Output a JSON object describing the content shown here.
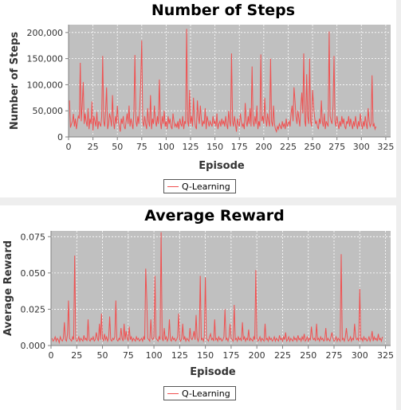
{
  "colors": {
    "plot_bg": "#c0c0c0",
    "grid": "#ffffff",
    "series": "#f05050",
    "axis": "#7f7f7f"
  },
  "chart_data": [
    {
      "type": "line",
      "title": "Number of Steps",
      "xlabel": "Episode",
      "ylabel": "Number of Steps",
      "xlim": [
        0,
        330
      ],
      "ylim": [
        0,
        215000
      ],
      "xticks": [
        0,
        25,
        50,
        75,
        100,
        125,
        150,
        175,
        200,
        225,
        250,
        275,
        300,
        325
      ],
      "xtick_labels": [
        "0",
        "25",
        "50",
        "75",
        "100",
        "125",
        "150",
        "175",
        "200",
        "225",
        "250",
        "275",
        "300",
        "325"
      ],
      "yticks": [
        0,
        50000,
        100000,
        150000,
        200000
      ],
      "ytick_labels": [
        "0",
        "50,000",
        "100,000",
        "150,000",
        "200,000"
      ],
      "grid": true,
      "legend": "bottom-center",
      "series": [
        {
          "name": "Q-Learning",
          "x_start": 1,
          "values": [
            70000,
            18000,
            25000,
            30000,
            44000,
            20000,
            35000,
            15000,
            28000,
            40000,
            35000,
            142000,
            30000,
            60000,
            105000,
            25000,
            45000,
            30000,
            20000,
            55000,
            15000,
            35000,
            25000,
            68000,
            12000,
            40000,
            30000,
            20000,
            48000,
            15000,
            30000,
            25000,
            20000,
            40000,
            155000,
            30000,
            20000,
            50000,
            95000,
            15000,
            25000,
            45000,
            35000,
            20000,
            80000,
            30000,
            15000,
            40000,
            25000,
            60000,
            30000,
            20000,
            10000,
            35000,
            25000,
            40000,
            20000,
            15000,
            30000,
            45000,
            25000,
            60000,
            20000,
            35000,
            25000,
            15000,
            50000,
            157000,
            30000,
            20000,
            40000,
            25000,
            60000,
            110000,
            185000,
            30000,
            20000,
            40000,
            25000,
            15000,
            55000,
            30000,
            20000,
            80000,
            15000,
            35000,
            25000,
            60000,
            30000,
            20000,
            40000,
            25000,
            110000,
            30000,
            15000,
            40000,
            25000,
            50000,
            20000,
            30000,
            15000,
            40000,
            25000,
            35000,
            20000,
            15000,
            45000,
            30000,
            20000,
            25000,
            18000,
            30000,
            15000,
            35000,
            25000,
            20000,
            40000,
            15000,
            30000,
            25000,
            207000,
            30000,
            20000,
            90000,
            25000,
            40000,
            20000,
            75000,
            35000,
            20000,
            15000,
            70000,
            40000,
            25000,
            60000,
            35000,
            20000,
            30000,
            25000,
            55000,
            15000,
            40000,
            30000,
            20000,
            30000,
            25000,
            20000,
            40000,
            25000,
            30000,
            20000,
            45000,
            15000,
            25000,
            30000,
            20000,
            35000,
            25000,
            30000,
            20000,
            40000,
            25000,
            15000,
            50000,
            30000,
            20000,
            160000,
            30000,
            20000,
            40000,
            25000,
            10000,
            35000,
            25000,
            20000,
            45000,
            30000,
            20000,
            25000,
            15000,
            65000,
            30000,
            20000,
            40000,
            25000,
            55000,
            20000,
            135000,
            30000,
            20000,
            40000,
            25000,
            60000,
            15000,
            30000,
            20000,
            158000,
            30000,
            40000,
            25000,
            75000,
            35000,
            20000,
            45000,
            30000,
            20000,
            150000,
            30000,
            20000,
            60000,
            25000,
            15000,
            10000,
            20000,
            15000,
            25000,
            20000,
            15000,
            30000,
            20000,
            25000,
            15000,
            35000,
            20000,
            25000,
            30000,
            20000,
            45000,
            60000,
            30000,
            95000,
            70000,
            40000,
            25000,
            50000,
            35000,
            20000,
            60000,
            85000,
            45000,
            160000,
            30000,
            20000,
            120000,
            40000,
            25000,
            150000,
            30000,
            20000,
            90000,
            60000,
            40000,
            25000,
            30000,
            20000,
            15000,
            35000,
            25000,
            70000,
            30000,
            20000,
            45000,
            15000,
            30000,
            25000,
            20000,
            202000,
            40000,
            30000,
            25000,
            60000,
            155000,
            30000,
            20000,
            40000,
            25000,
            15000,
            30000,
            20000,
            40000,
            25000,
            35000,
            20000,
            15000,
            30000,
            25000,
            40000,
            20000,
            35000,
            25000,
            15000,
            30000,
            20000,
            40000,
            25000,
            15000,
            30000,
            20000,
            45000,
            25000,
            15000,
            30000,
            20000,
            40000,
            25000,
            15000,
            55000,
            30000,
            20000,
            25000,
            118000,
            20000,
            25000,
            15000,
            20000
          ]
        }
      ]
    },
    {
      "type": "line",
      "title": "Average Reward",
      "xlabel": "Episode",
      "ylabel": "Average Reward",
      "xlim": [
        0,
        330
      ],
      "ylim": [
        0,
        0.079
      ],
      "xticks": [
        0,
        25,
        50,
        75,
        100,
        125,
        150,
        175,
        200,
        225,
        250,
        275,
        300,
        325
      ],
      "xtick_labels": [
        "0",
        "25",
        "50",
        "75",
        "100",
        "125",
        "150",
        "175",
        "200",
        "225",
        "250",
        "275",
        "300",
        "325"
      ],
      "yticks": [
        0,
        0.025,
        0.05,
        0.075
      ],
      "ytick_labels": [
        "0.000",
        "0.025",
        "0.050",
        "0.075"
      ],
      "grid": true,
      "legend": "bottom-center",
      "series": [
        {
          "name": "Q-Learning",
          "x_start": 1,
          "values": [
            0.005,
            0.003,
            0.004,
            0.006,
            0.003,
            0.005,
            0.004,
            0.002,
            0.006,
            0.004,
            0.003,
            0.005,
            0.016,
            0.004,
            0.003,
            0.008,
            0.031,
            0.005,
            0.004,
            0.003,
            0.006,
            0.004,
            0.062,
            0.005,
            0.003,
            0.004,
            0.006,
            0.003,
            0.005,
            0.004,
            0.003,
            0.007,
            0.004,
            0.005,
            0.003,
            0.018,
            0.004,
            0.003,
            0.005,
            0.004,
            0.006,
            0.003,
            0.004,
            0.009,
            0.005,
            0.003,
            0.015,
            0.004,
            0.022,
            0.005,
            0.003,
            0.008,
            0.004,
            0.006,
            0.003,
            0.005,
            0.02,
            0.004,
            0.003,
            0.005,
            0.004,
            0.006,
            0.031,
            0.004,
            0.003,
            0.005,
            0.004,
            0.012,
            0.005,
            0.003,
            0.015,
            0.004,
            0.01,
            0.005,
            0.003,
            0.013,
            0.004,
            0.006,
            0.003,
            0.005,
            0.004,
            0.003,
            0.006,
            0.004,
            0.005,
            0.003,
            0.004,
            0.005,
            0.003,
            0.006,
            0.004,
            0.053,
            0.032,
            0.005,
            0.004,
            0.003,
            0.018,
            0.005,
            0.004,
            0.006,
            0.048,
            0.005,
            0.004,
            0.003,
            0.006,
            0.004,
            0.078,
            0.005,
            0.003,
            0.012,
            0.004,
            0.006,
            0.003,
            0.005,
            0.018,
            0.004,
            0.003,
            0.006,
            0.004,
            0.005,
            0.003,
            0.004,
            0.006,
            0.022,
            0.004,
            0.003,
            0.005,
            0.015,
            0.004,
            0.006,
            0.003,
            0.005,
            0.004,
            0.003,
            0.012,
            0.005,
            0.004,
            0.006,
            0.01,
            0.004,
            0.021,
            0.005,
            0.003,
            0.006,
            0.048,
            0.004,
            0.005,
            0.003,
            0.006,
            0.047,
            0.005,
            0.004,
            0.003,
            0.006,
            0.008,
            0.004,
            0.005,
            0.003,
            0.018,
            0.004,
            0.005,
            0.003,
            0.006,
            0.004,
            0.005,
            0.003,
            0.004,
            0.006,
            0.025,
            0.004,
            0.005,
            0.003,
            0.006,
            0.015,
            0.005,
            0.004,
            0.003,
            0.028,
            0.004,
            0.005,
            0.003,
            0.006,
            0.004,
            0.005,
            0.003,
            0.016,
            0.004,
            0.006,
            0.003,
            0.005,
            0.004,
            0.011,
            0.003,
            0.005,
            0.004,
            0.003,
            0.006,
            0.004,
            0.052,
            0.005,
            0.003,
            0.004,
            0.006,
            0.003,
            0.005,
            0.004,
            0.003,
            0.015,
            0.004,
            0.005,
            0.003,
            0.006,
            0.004,
            0.005,
            0.003,
            0.004,
            0.006,
            0.003,
            0.005,
            0.004,
            0.003,
            0.007,
            0.004,
            0.005,
            0.003,
            0.006,
            0.004,
            0.009,
            0.003,
            0.004,
            0.006,
            0.003,
            0.005,
            0.004,
            0.003,
            0.006,
            0.004,
            0.005,
            0.003,
            0.007,
            0.004,
            0.005,
            0.003,
            0.006,
            0.004,
            0.008,
            0.003,
            0.004,
            0.006,
            0.003,
            0.005,
            0.004,
            0.013,
            0.006,
            0.004,
            0.005,
            0.003,
            0.015,
            0.004,
            0.005,
            0.003,
            0.006,
            0.004,
            0.005,
            0.003,
            0.004,
            0.012,
            0.003,
            0.005,
            0.004,
            0.003,
            0.006,
            0.009,
            0.005,
            0.003,
            0.004,
            0.006,
            0.003,
            0.005,
            0.004,
            0.003,
            0.063,
            0.004,
            0.005,
            0.003,
            0.006,
            0.012,
            0.005,
            0.003,
            0.004,
            0.006,
            0.003,
            0.005,
            0.004,
            0.015,
            0.006,
            0.004,
            0.005,
            0.003,
            0.039,
            0.004,
            0.005,
            0.003,
            0.006,
            0.004,
            0.005,
            0.003,
            0.004,
            0.006,
            0.003,
            0.005,
            0.01,
            0.003,
            0.006,
            0.004,
            0.005,
            0.003,
            0.008,
            0.004,
            0.005,
            0.003,
            0.006
          ]
        }
      ]
    }
  ]
}
